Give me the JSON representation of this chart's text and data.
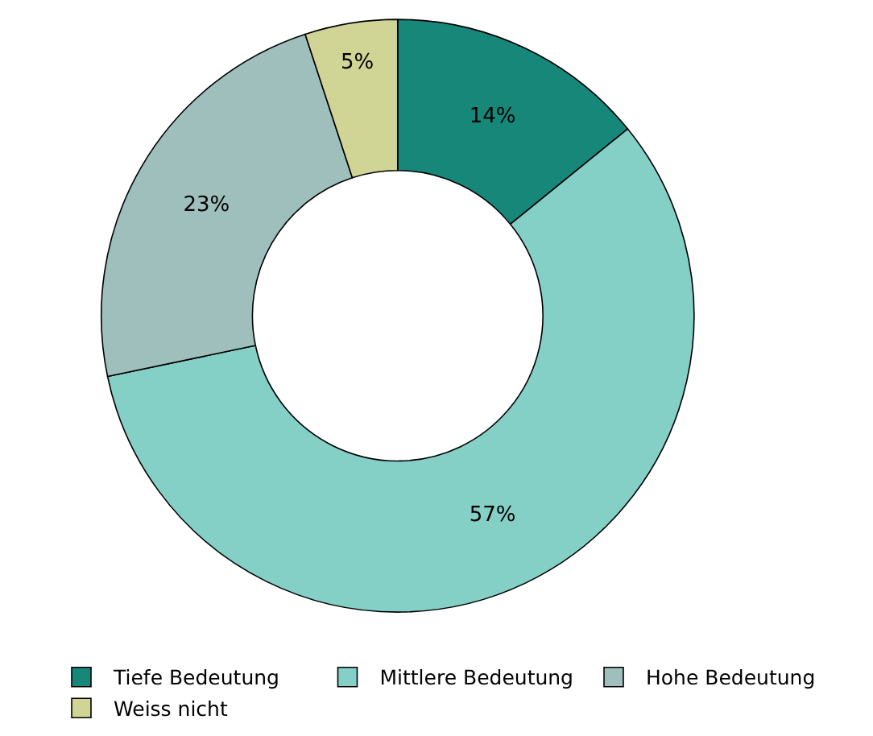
{
  "chart_data": {
    "type": "donut",
    "categories": [
      "Tiefe Bedeutung",
      "Mittlere Bedeutung",
      "Hohe Bedeutung",
      "Weiss nicht"
    ],
    "values": [
      14,
      57,
      23,
      5
    ],
    "value_labels": [
      "14%",
      "57%",
      "23%",
      "5%"
    ],
    "colors": [
      "#17877a",
      "#85d0c6",
      "#9fbfbc",
      "#d0d595"
    ],
    "legend": "bottom"
  }
}
